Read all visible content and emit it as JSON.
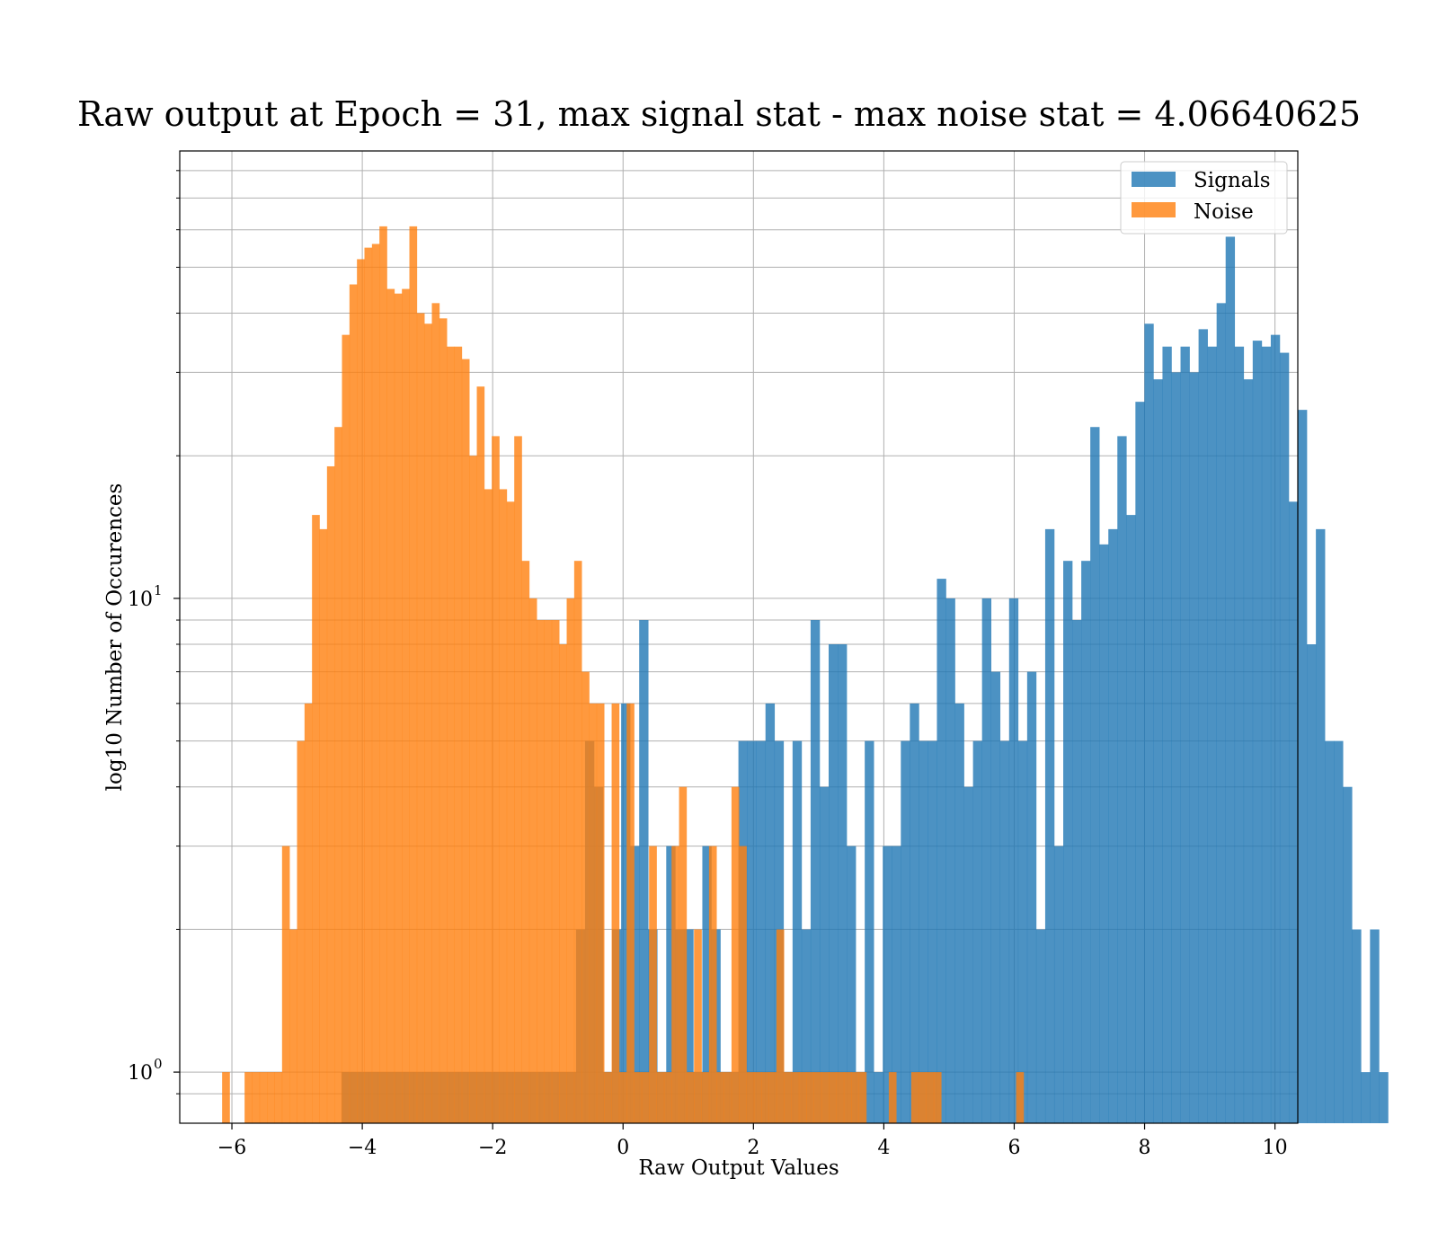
{
  "colors": {
    "signals": "#1f77b4",
    "noise": "#ff7f0e"
  },
  "chart_data": {
    "type": "histogram",
    "title": "Raw output at Epoch = 31, max signal stat - max noise stat = 4.06640625",
    "xlabel": "Raw Output Values",
    "ylabel": "log10 Number of Occurences",
    "xlim": [
      -6.8,
      10.35
    ],
    "ylim": [
      0.78,
      88
    ],
    "yscale": "log",
    "grid": true,
    "legend_position": "top-right",
    "xticks": [
      -6,
      -4,
      -2,
      0,
      2,
      4,
      6,
      8,
      10
    ],
    "xtick_labels": [
      "−6",
      "−4",
      "−2",
      "0",
      "2",
      "4",
      "6",
      "8",
      "10"
    ],
    "yticks_major": [
      1,
      10
    ],
    "ytick_labels": [
      [
        "10",
        "0"
      ],
      [
        "10",
        "1"
      ]
    ],
    "yticks_minor": [
      0.9,
      2,
      3,
      4,
      5,
      6,
      7,
      8,
      9,
      20,
      30,
      40,
      50,
      60,
      70,
      80
    ],
    "series": [
      {
        "name": "Signals",
        "color": "#1f77b4",
        "bin_start": -4.32,
        "bin_width": 0.1384,
        "counts": [
          1,
          1,
          1,
          1,
          1,
          1,
          1,
          1,
          1,
          1,
          1,
          1,
          1,
          1,
          1,
          1,
          1,
          1,
          1,
          1,
          1,
          1,
          1,
          1,
          1,
          1,
          2,
          5,
          4,
          1,
          2,
          6,
          3,
          9,
          2,
          1,
          3,
          2,
          2,
          1,
          3,
          2,
          1,
          1,
          5,
          5,
          5,
          6,
          5,
          1,
          5,
          2,
          9,
          4,
          8,
          8,
          3,
          1,
          5,
          1,
          3,
          3,
          5,
          6,
          5,
          5,
          11,
          10,
          6,
          4,
          5,
          10,
          7,
          5,
          10,
          5,
          7,
          2,
          14,
          3,
          12,
          9,
          12,
          23,
          13,
          14,
          22,
          15,
          26,
          38,
          29,
          34,
          30,
          34,
          30,
          37,
          34,
          42,
          58,
          34,
          29,
          35,
          34,
          36,
          33,
          16,
          25,
          8,
          14,
          5,
          5,
          4,
          2,
          1,
          2,
          1
        ],
        "values": "counts per bin (estimated from the log axis)"
      },
      {
        "name": "Noise",
        "color": "#ff7f0e",
        "bin_start": -6.15,
        "bin_width": 0.1149,
        "counts": [
          1,
          0,
          0,
          1,
          1,
          1,
          1,
          1,
          3,
          2,
          5,
          6,
          15,
          14,
          19,
          23,
          36,
          46,
          52,
          55,
          56,
          61,
          45,
          44,
          45,
          61,
          40,
          38,
          42,
          39,
          34,
          34,
          32,
          20,
          28,
          17,
          22,
          17,
          16,
          22,
          12,
          10,
          9,
          9,
          9,
          8,
          10,
          12,
          7,
          6,
          6,
          1,
          6,
          1,
          6,
          1,
          1,
          3,
          1,
          1,
          3,
          4,
          1,
          2,
          1,
          3,
          1,
          1,
          4,
          3,
          1,
          1,
          1,
          1,
          2,
          1,
          1,
          1,
          1,
          1,
          1,
          1,
          1,
          1,
          1,
          1,
          0,
          0,
          0,
          1,
          0,
          0,
          1,
          1,
          1,
          1,
          0,
          0,
          0,
          0,
          0,
          0,
          0,
          0,
          0,
          0,
          1
        ],
        "values": "counts per bin (estimated from the log axis)"
      }
    ]
  }
}
